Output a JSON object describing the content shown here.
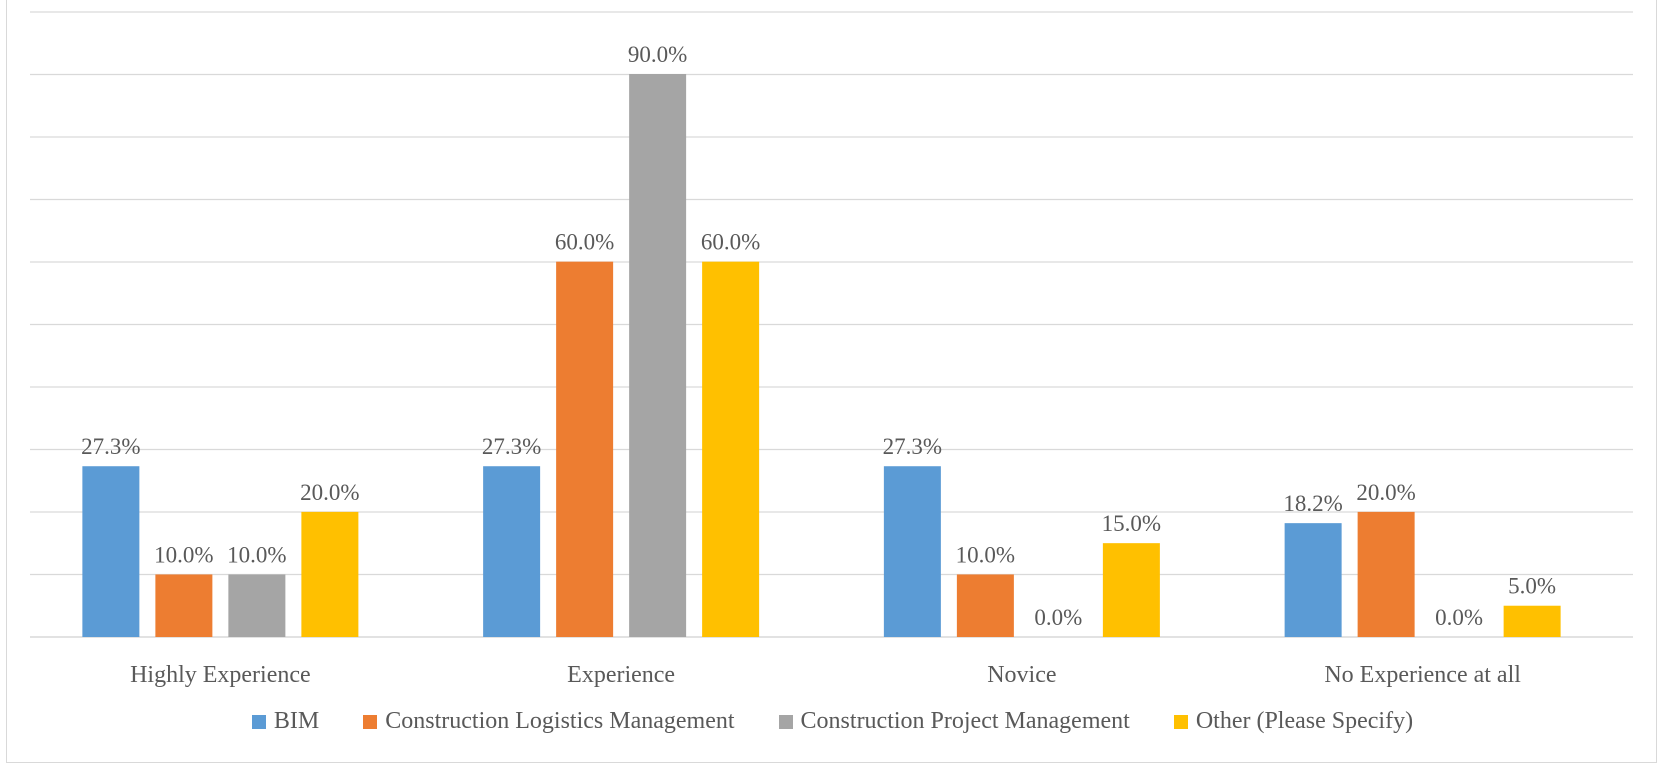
{
  "chart_data": {
    "type": "bar",
    "title": "",
    "xlabel": "",
    "ylabel": "",
    "ylim": [
      0,
      100
    ],
    "grid": true,
    "legend_position": "bottom",
    "categories": [
      "Highly Experience",
      "Experience",
      "Novice",
      "No Experience at all"
    ],
    "series": [
      {
        "name": "BIM",
        "color": "#5b9bd5",
        "values": [
          27.3,
          27.3,
          27.3,
          18.2
        ],
        "labels": [
          "27.3%",
          "27.3%",
          "27.3%",
          "18.2%"
        ]
      },
      {
        "name": "Construction Logistics Management",
        "color": "#ed7d31",
        "values": [
          10.0,
          60.0,
          10.0,
          20.0
        ],
        "labels": [
          "10.0%",
          "60.0%",
          "10.0%",
          "20.0%"
        ]
      },
      {
        "name": "Construction Project Management",
        "color": "#a5a5a5",
        "values": [
          10.0,
          90.0,
          0.0,
          0.0
        ],
        "labels": [
          "10.0%",
          "90.0%",
          "0.0%",
          "0.0%"
        ]
      },
      {
        "name": "Other (Please Specify)",
        "color": "#ffc000",
        "values": [
          20.0,
          60.0,
          15.0,
          5.0
        ],
        "labels": [
          "20.0%",
          "60.0%",
          "15.0%",
          "5.0%"
        ]
      }
    ]
  }
}
